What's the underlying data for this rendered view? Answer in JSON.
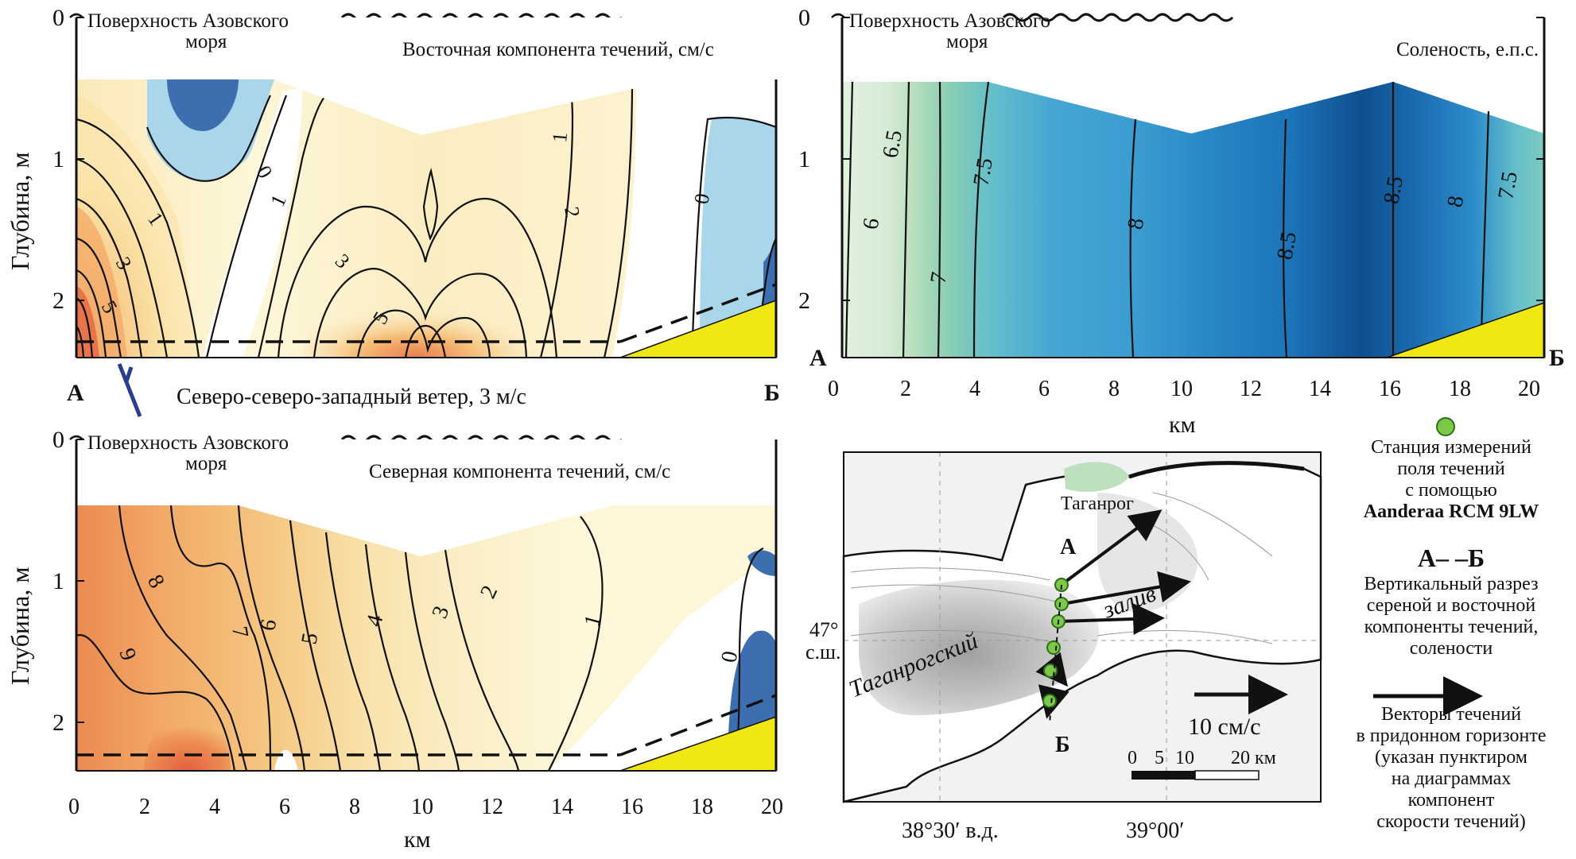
{
  "chart_data": [
    {
      "type": "contour",
      "id": "east",
      "title": "Восточная компонента течений, см/с",
      "surface_label_line1": "Поверхность Азовского",
      "surface_label_line2": "моря",
      "ylabel": "Глубина, м",
      "xlabel": "",
      "xlim": [
        0,
        20
      ],
      "ylim": [
        0,
        2.4
      ],
      "y_ticks": [
        "0",
        "1",
        "2"
      ],
      "section_start": "А",
      "section_end": "Б",
      "contour_labels": [
        "0",
        "0",
        "1",
        "1",
        "1",
        "2",
        "3",
        "3",
        "5",
        "5"
      ],
      "colors": {
        "neg_dark": "#3d6eb0",
        "neg_light": "#a9d6ea",
        "pos_low": "#fdf6d8",
        "pos_mid": "#f8d08a",
        "pos_high": "#e8744a",
        "bottom": "#f1e813"
      }
    },
    {
      "type": "contour",
      "id": "salinity",
      "title": "Соленость, е.п.с.",
      "surface_label_line1": "Поверхность Азовского",
      "surface_label_line2": "моря",
      "xlabel": "км",
      "xlim": [
        0,
        20
      ],
      "ylim": [
        0,
        2.4
      ],
      "x_ticks": [
        "0",
        "2",
        "4",
        "6",
        "8",
        "10",
        "12",
        "14",
        "16",
        "18",
        "20"
      ],
      "y_ticks": [
        "0",
        "1",
        "2"
      ],
      "section_start": "А",
      "section_end": "Б",
      "contour_labels": [
        "6",
        "6.5",
        "7",
        "7.5",
        "8",
        "8.5",
        "8.5",
        "8",
        "7.5"
      ],
      "colors": {
        "c6": "#e3f1e1",
        "c65": "#b9e0bd",
        "c7": "#8ccfb3",
        "c75": "#66bfc9",
        "c8": "#3ea0d2",
        "c85": "#1b74b8",
        "c9": "#0e4f8e",
        "bottom": "#f1e813"
      }
    },
    {
      "type": "contour",
      "id": "north",
      "title": "Северная компонента течений, см/с",
      "surface_label_line1": "Поверхность Азовского",
      "surface_label_line2": "моря",
      "ylabel": "Глубина, м",
      "xlabel": "км",
      "xlim": [
        0,
        20
      ],
      "ylim": [
        0,
        2.4
      ],
      "x_ticks": [
        "0",
        "2",
        "4",
        "6",
        "8",
        "10",
        "12",
        "14",
        "16",
        "18",
        "20"
      ],
      "y_ticks": [
        "0",
        "1",
        "2"
      ],
      "contour_labels": [
        "9",
        "8",
        "7",
        "6",
        "5",
        "4",
        "3",
        "2",
        "1",
        "0"
      ],
      "colors": {
        "c1": "#fdf6d8",
        "c3": "#f9e3ad",
        "c5": "#f5c882",
        "c7": "#f2a866",
        "c9": "#ec8a52",
        "c10": "#e46a44",
        "neg": "#3d6eb0",
        "bottom": "#f1e813"
      }
    }
  ],
  "wind_label": "Северо-северо-западный ветер, 3 м/с",
  "map": {
    "city": "Таганрог",
    "gulf_word1": "Таганрогский",
    "gulf_word2": "залив",
    "point_start": "А",
    "point_end": "Б",
    "lat_value": "47°",
    "lat_unit": "с.ш.",
    "lon_left": "38°30′ в.д.",
    "lon_right": "39°00′",
    "scale_vector_label": "10 см/с",
    "scale_ticks": [
      "0",
      "5",
      "10",
      "20 км"
    ]
  },
  "legend": {
    "station_line1": "Станция измерений",
    "station_line2": "поля течений",
    "station_line3": "с помощью",
    "station_line4": "Aanderaa RCM 9LW",
    "section_symbol": "А– –Б",
    "section_line1": "Вертикальный разрез",
    "section_line2": "сереной и восточной",
    "section_line3": "компоненты течений,",
    "section_line4": "солености",
    "vector_line1": "Векторы течений",
    "vector_line2": "в придонном горизонте",
    "vector_line3": "(указан пунктиром",
    "vector_line4": "на диаграммах",
    "vector_line5": "компонент",
    "vector_line6": "скорости течений)"
  }
}
